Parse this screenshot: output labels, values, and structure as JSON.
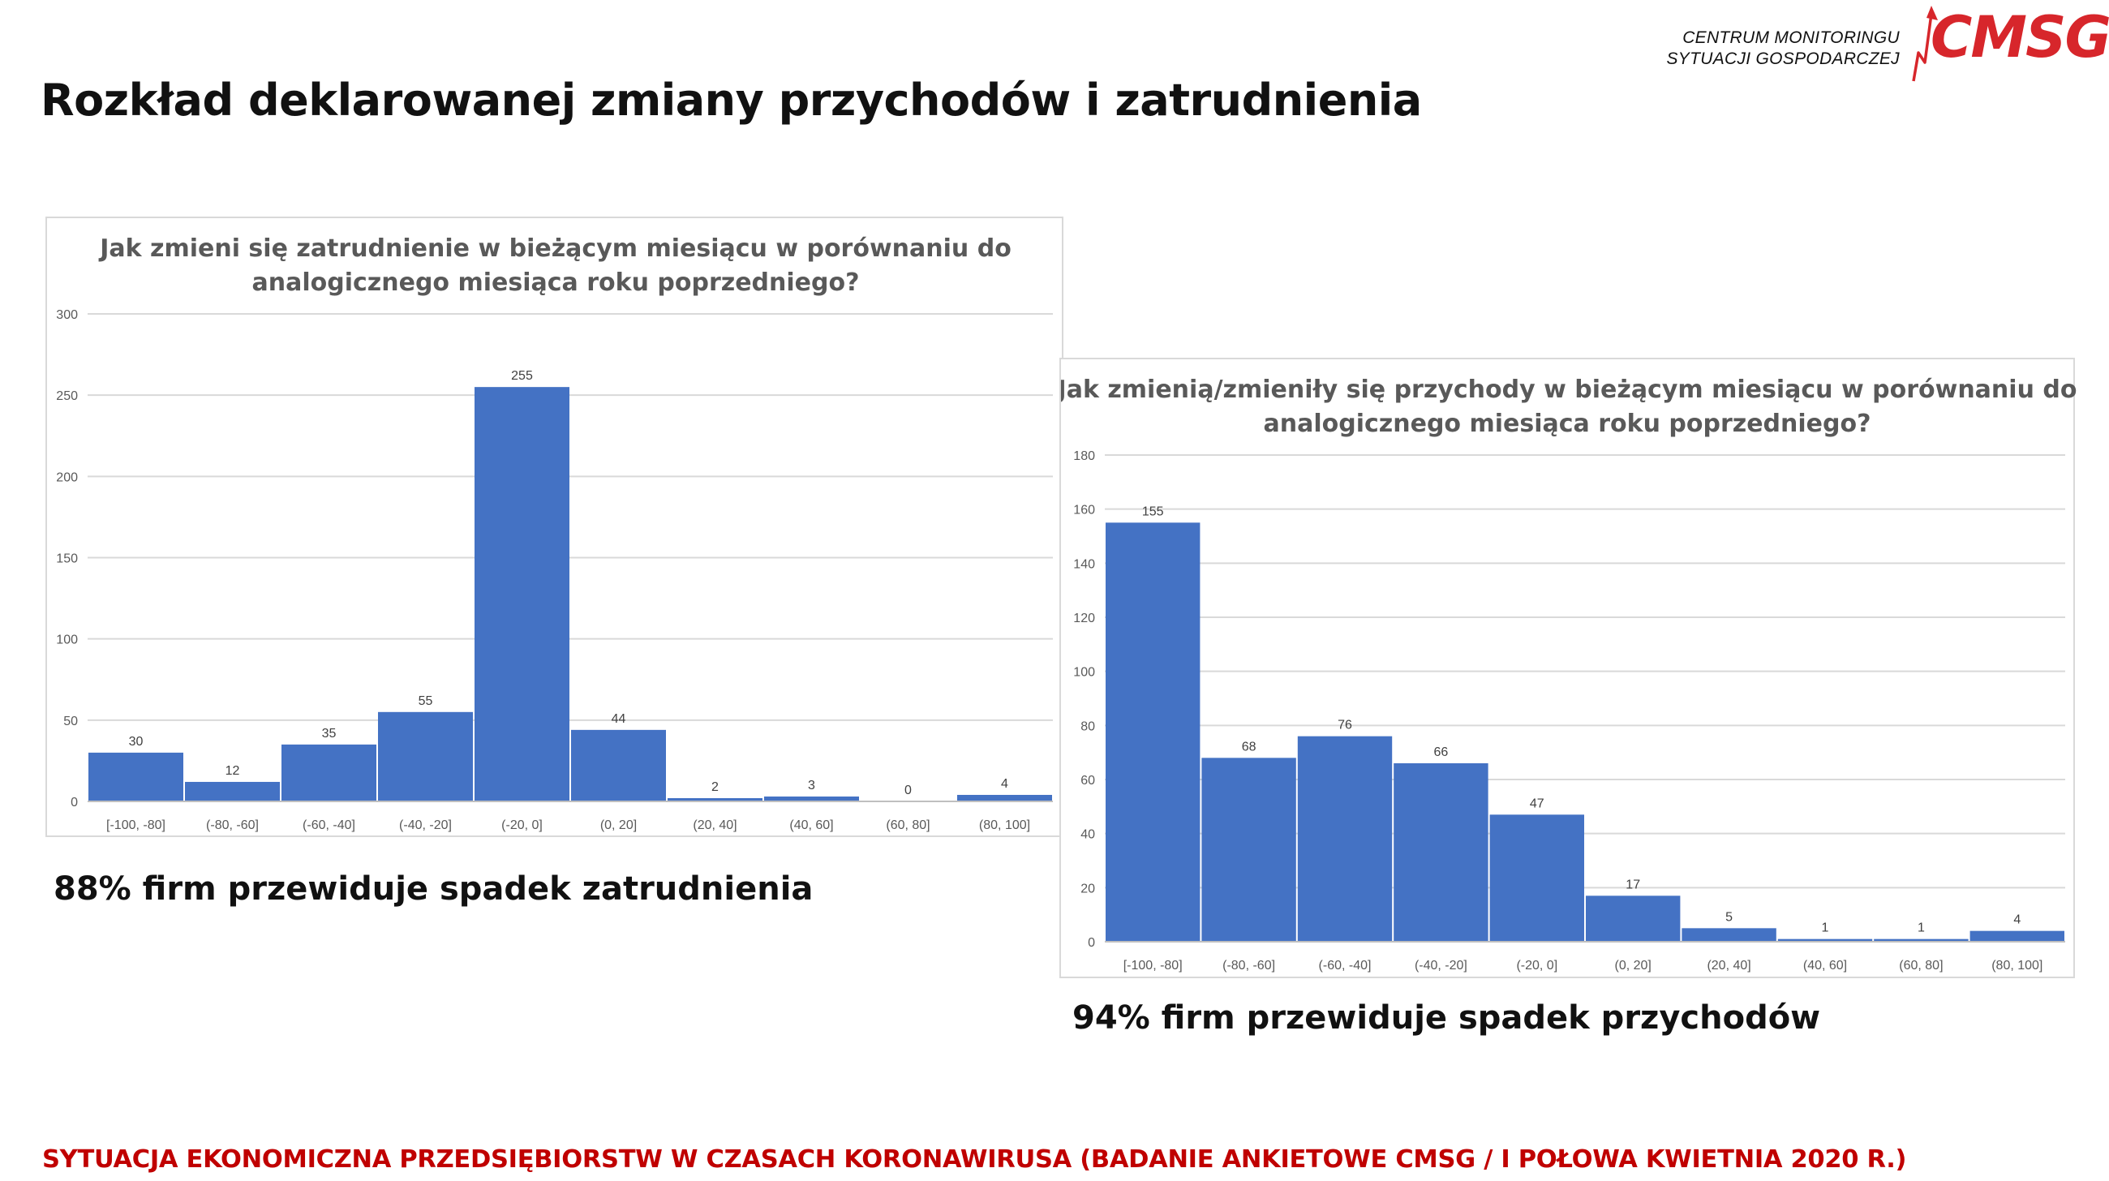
{
  "page_title": "Rozkład deklarowanej zmiany przychodów i zatrudnienia",
  "logo": {
    "line1": "CENTRUM MONITORINGU",
    "line2": "SYTUACJI GOSPODARCZEJ",
    "mark": "CMSG",
    "color": "#d7262b"
  },
  "captions": {
    "employment": "88% firm przewiduje spadek zatrudnienia",
    "revenue": "94% firm przewiduje spadek przychodów"
  },
  "footer": "SYTUACJA EKONOMICZNA PRZEDSIĘBIORSTW W CZASACH KORONAWIRUSA (BADANIE ANKIETOWE CMSG / I POŁOWA KWIETNIA 2020 R.)",
  "colors": {
    "bar": "#4472c4",
    "footer": "#c00000"
  },
  "chart_data": [
    {
      "type": "bar",
      "title_lines": [
        "Jak zmieni się zatrudnienie w bieżącym miesiącu w porównaniu do",
        "analogicznego miesiąca roku poprzedniego?"
      ],
      "categories": [
        "[-100, -80]",
        "(-80, -60]",
        "(-60, -40]",
        "(-40, -20]",
        "(-20, 0]",
        "(0, 20]",
        "(20, 40]",
        "(40, 60]",
        "(60, 80]",
        "(80, 100]"
      ],
      "values": [
        30,
        12,
        35,
        55,
        255,
        44,
        2,
        3,
        0,
        4
      ],
      "ylim": [
        0,
        300
      ],
      "yticks": [
        0,
        50,
        100,
        150,
        200,
        250,
        300
      ],
      "grid": true,
      "legend": "none"
    },
    {
      "type": "bar",
      "title_lines": [
        "Jak zmienią/zmieniły się przychody w bieżącym miesiącu w porównaniu do",
        "analogicznego miesiąca roku poprzedniego?"
      ],
      "categories": [
        "[-100, -80]",
        "(-80, -60]",
        "(-60, -40]",
        "(-40, -20]",
        "(-20, 0]",
        "(0, 20]",
        "(20, 40]",
        "(40, 60]",
        "(60, 80]",
        "(80, 100]"
      ],
      "values": [
        155,
        68,
        76,
        66,
        47,
        17,
        5,
        1,
        1,
        4
      ],
      "ylim": [
        0,
        180
      ],
      "yticks": [
        0,
        20,
        40,
        60,
        80,
        100,
        120,
        140,
        160,
        180
      ],
      "grid": true,
      "legend": "none"
    }
  ]
}
